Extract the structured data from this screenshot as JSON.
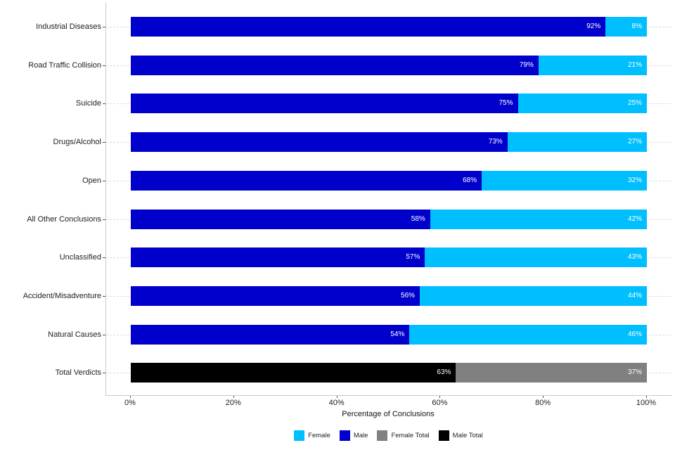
{
  "chart_data": {
    "type": "bar",
    "orientation": "horizontal",
    "stacked": true,
    "title": "",
    "xlabel": "Percentage of Conclusions",
    "ylabel": "",
    "xlim": [
      0,
      100
    ],
    "x_ticks": [
      0,
      20,
      40,
      60,
      80,
      100
    ],
    "x_tick_labels": [
      "0%",
      "20%",
      "40%",
      "60%",
      "80%",
      "100%"
    ],
    "grid": "horizontal-dashed",
    "legend_position": "bottom",
    "bar_label_format": "{value}%",
    "categories": [
      "Industrial Diseases",
      "Road Traffic Collision",
      "Suicide",
      "Drugs/Alcohol",
      "Open",
      "All Other Conclusions",
      "Unclassified",
      "Accident/Misadventure",
      "Natural Causes",
      "Total Verdicts"
    ],
    "series": [
      {
        "name": "Male",
        "color": "#0000CD",
        "values": [
          92,
          79,
          75,
          73,
          68,
          58,
          57,
          56,
          54,
          null
        ]
      },
      {
        "name": "Female",
        "color": "#00BFFF",
        "values": [
          8,
          21,
          25,
          27,
          32,
          42,
          43,
          44,
          46,
          null
        ]
      },
      {
        "name": "Male Total",
        "color": "#000000",
        "values": [
          null,
          null,
          null,
          null,
          null,
          null,
          null,
          null,
          null,
          63
        ]
      },
      {
        "name": "Female Total",
        "color": "#808080",
        "values": [
          null,
          null,
          null,
          null,
          null,
          null,
          null,
          null,
          null,
          37
        ]
      }
    ]
  },
  "legend": {
    "items": [
      {
        "label": "Female",
        "color": "#00BFFF"
      },
      {
        "label": "Male",
        "color": "#0000CD"
      },
      {
        "label": "Female Total",
        "color": "#808080"
      },
      {
        "label": "Male Total",
        "color": "#000000"
      }
    ]
  },
  "colors": {
    "male": "#0000CD",
    "female": "#00BFFF",
    "male_total": "#000000",
    "female_total": "#808080",
    "gridline": "#DEDEDE",
    "axis_line": "#C9C9C9",
    "bar_label_text": "#FFFFFF"
  }
}
